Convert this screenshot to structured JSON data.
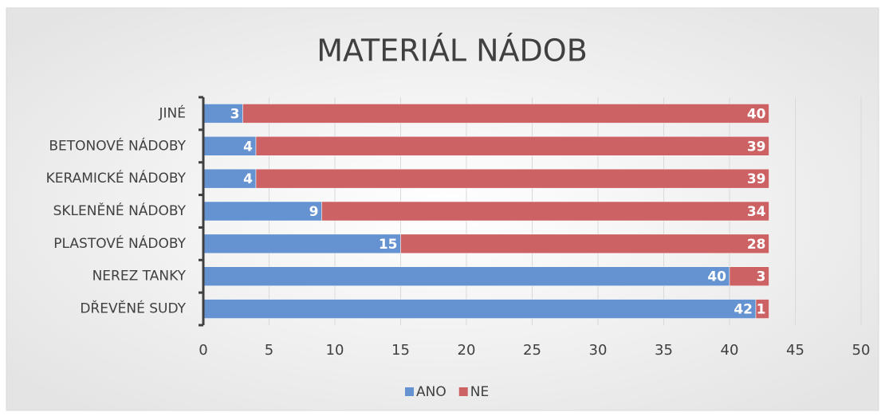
{
  "chart_data": {
    "type": "stacked-barh",
    "title": "MATERIÁL NÁDOB",
    "categories": [
      "JINÉ",
      "BETONOVÉ NÁDOBY",
      "KERAMICKÉ NÁDOBY",
      "SKLENĚNÉ NÁDOBY",
      "PLASTOVÉ NÁDOBY",
      "NEREZ TANKY",
      "DŘEVĚNÉ SUDY"
    ],
    "series": [
      {
        "name": "ANO",
        "color": "#6592d0",
        "values": [
          3,
          4,
          4,
          9,
          15,
          40,
          42
        ]
      },
      {
        "name": "NE",
        "color": "#cc6264",
        "values": [
          40,
          39,
          39,
          34,
          28,
          3,
          1
        ]
      }
    ],
    "xlim": [
      0,
      50
    ],
    "xticks": [
      0,
      5,
      10,
      15,
      20,
      25,
      30,
      35,
      40,
      45,
      50
    ],
    "grid": true,
    "legend": "bottom"
  }
}
